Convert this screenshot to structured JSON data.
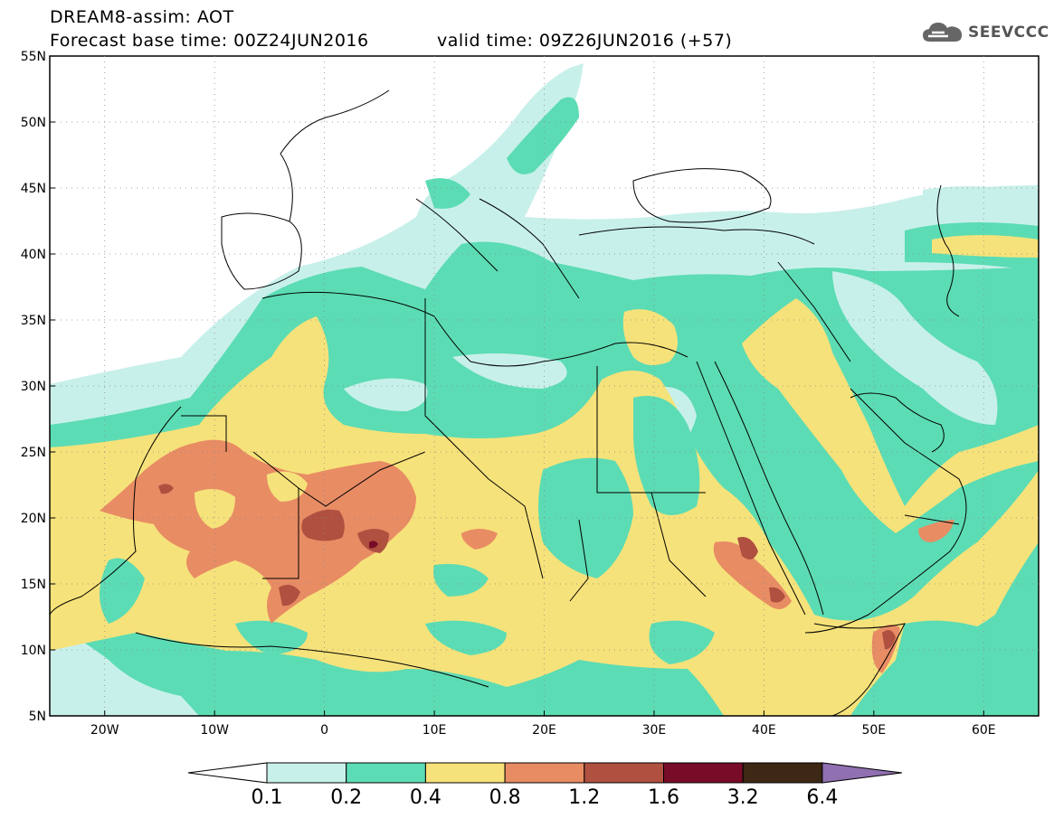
{
  "header": {
    "title": "DREAM8-assim: AOT",
    "base_time": "Forecast base time: 00Z24JUN2016",
    "valid_time": "valid time: 09Z26JUN2016 (+57)",
    "logo_text": "SEEVCCC"
  },
  "map": {
    "lon_range": [
      -25,
      65
    ],
    "lat_range": [
      5,
      55
    ],
    "lat_ticks": [
      "55N",
      "50N",
      "45N",
      "40N",
      "35N",
      "30N",
      "25N",
      "20N",
      "15N",
      "10N",
      "5N"
    ],
    "lon_ticks": [
      "20W",
      "10W",
      "0",
      "10E",
      "20E",
      "30E",
      "40E",
      "50E",
      "60E"
    ],
    "colors": {
      "c01": "#c8f0ea",
      "c02": "#5cdcb4",
      "c04": "#f6e27a",
      "c08": "#e88c64",
      "c12": "#b05040",
      "c16": "#780c28",
      "c32": "#3c2814",
      "c64": "#9070b0"
    }
  },
  "colorbar": {
    "labels": [
      "0.1",
      "0.2",
      "0.4",
      "0.8",
      "1.2",
      "1.6",
      "3.2",
      "6.4"
    ],
    "colors": [
      "#c8f0ea",
      "#5cdcb4",
      "#f6e27a",
      "#e88c64",
      "#b05040",
      "#780c28",
      "#3c2814"
    ],
    "low_arrow_color": "#ffffff",
    "high_arrow_color": "#9070b0"
  }
}
